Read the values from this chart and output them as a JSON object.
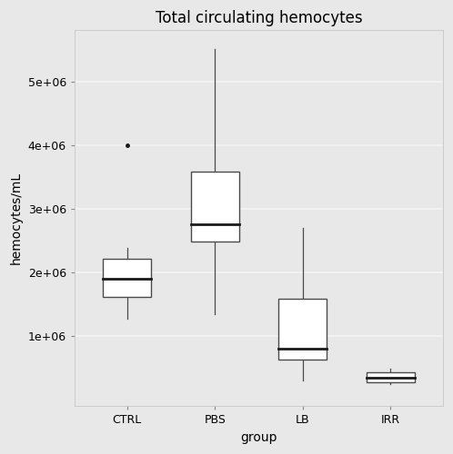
{
  "title": "Total circulating hemocytes",
  "xlabel": "group",
  "ylabel": "hemocytes/mL",
  "background_color": "#e8e8e8",
  "grid_color": "#f5f5f5",
  "categories": [
    "CTRL",
    "PBS",
    "LB",
    "IRR"
  ],
  "boxes": [
    {
      "group": "CTRL",
      "median": 1900000,
      "q1": 1620000,
      "q3": 2220000,
      "whisker_low": 1280000,
      "whisker_high": 2380000,
      "outliers": [
        4000000
      ]
    },
    {
      "group": "PBS",
      "median": 2750000,
      "q1": 2480000,
      "q3": 3580000,
      "whisker_low": 1350000,
      "whisker_high": 5500000,
      "outliers": []
    },
    {
      "group": "LB",
      "median": 800000,
      "q1": 630000,
      "q3": 1580000,
      "whisker_low": 300000,
      "whisker_high": 2700000,
      "outliers": []
    },
    {
      "group": "IRR",
      "median": 350000,
      "q1": 270000,
      "q3": 430000,
      "whisker_low": 250000,
      "whisker_high": 490000,
      "outliers": []
    }
  ],
  "ylim": [
    -100000,
    5800000
  ],
  "yticks": [
    1000000,
    2000000,
    3000000,
    4000000,
    5000000
  ],
  "ytick_labels": [
    "1e+06",
    "2e+06",
    "3e+06",
    "4e+06",
    "5e+06"
  ],
  "box_width": 0.55,
  "box_color": "white",
  "box_edgecolor": "#4a4a4a",
  "median_color": "#1a1a1a",
  "whisker_color": "#4a4a4a",
  "outlier_color": "#1a1a1a",
  "title_fontsize": 12,
  "axis_label_fontsize": 10,
  "tick_fontsize": 9
}
